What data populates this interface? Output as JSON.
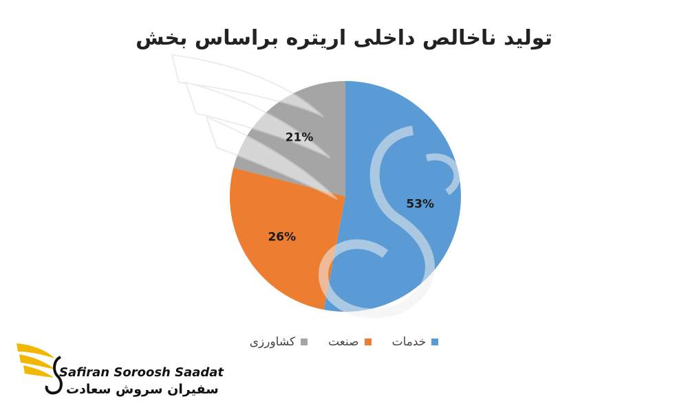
{
  "chart_data": {
    "type": "pie",
    "title": "تولید ناخالص داخلی اریتره براساس بخش",
    "categories": [
      "خدمات",
      "صنعت",
      "کشاورزی"
    ],
    "values": [
      53,
      26,
      21
    ],
    "labels": [
      "53%",
      "26%",
      "21%"
    ],
    "colors": [
      "#5B9BD5",
      "#ED7D31",
      "#A5A5A5"
    ],
    "legend_position": "bottom"
  },
  "logo": {
    "name_en": "Safiran Soroosh Saadat",
    "name_fa": "سفیران سروش سعادت"
  }
}
